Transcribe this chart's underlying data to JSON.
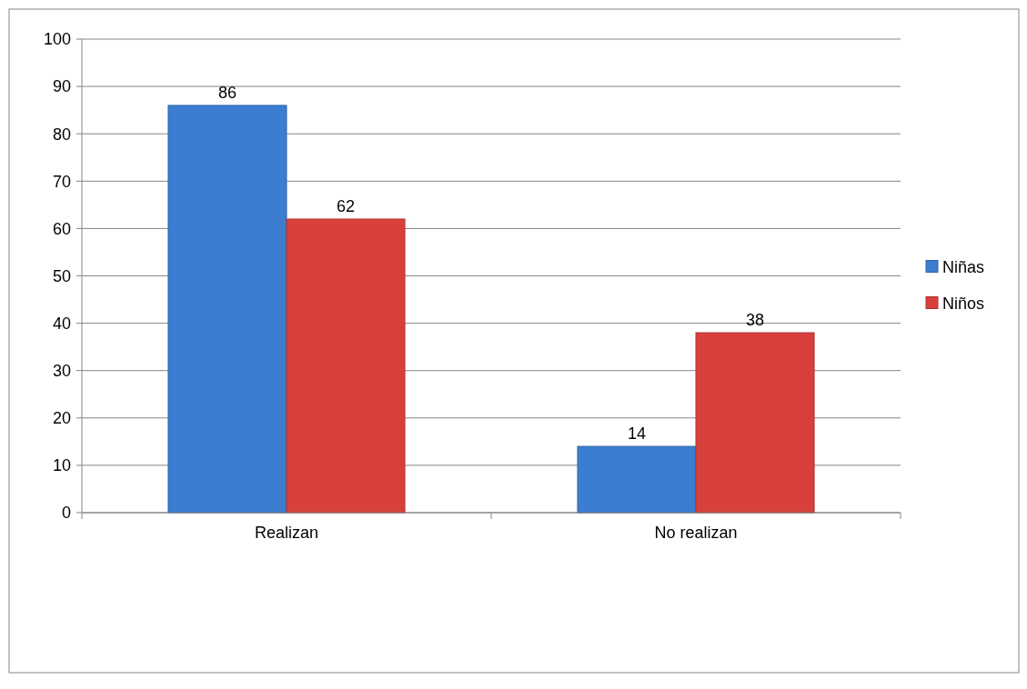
{
  "chart_data": {
    "type": "bar",
    "categories": [
      "Realizan",
      "No realizan"
    ],
    "series": [
      {
        "name": "Niñas",
        "color": "#3b7dd0",
        "values": [
          86,
          14
        ]
      },
      {
        "name": "Niños",
        "color": "#d8403c",
        "values": [
          62,
          38
        ]
      }
    ],
    "ylim": [
      0,
      100
    ],
    "yticks": [
      0,
      10,
      20,
      30,
      40,
      50,
      60,
      70,
      80,
      90,
      100
    ],
    "grid": "y",
    "legend": "right",
    "data_labels": true
  }
}
